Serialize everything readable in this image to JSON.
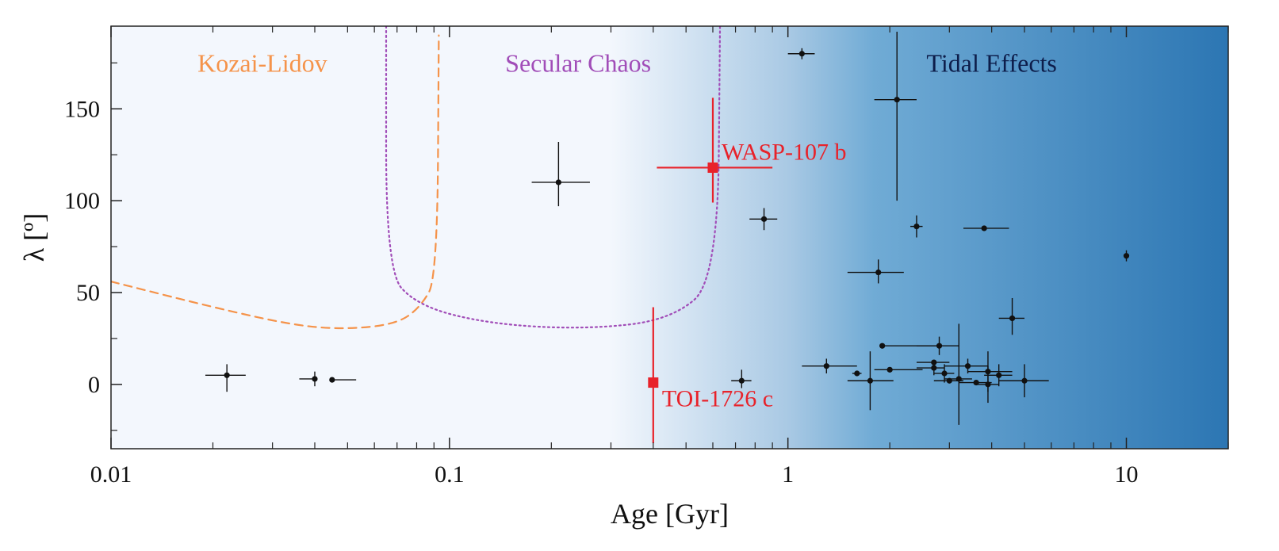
{
  "chart_data": {
    "type": "scatter",
    "x_axis": {
      "label": "Age [Gyr]",
      "scale": "log",
      "range": [
        0.01,
        20
      ],
      "tick_labels": [
        "0.01",
        "0.1",
        "1",
        "10"
      ],
      "tick_values": [
        0.01,
        0.1,
        1,
        10
      ]
    },
    "y_axis": {
      "label": "λ [º]",
      "range": [
        -35,
        195
      ],
      "tick_labels": [
        "0",
        "50",
        "100",
        "150"
      ],
      "tick_values": [
        0,
        50,
        100,
        150
      ]
    },
    "grid": false,
    "background_gradient": {
      "from_color": "#f3f7fd",
      "to_color": "#2c76b3",
      "start_age": 0.3,
      "end_age": 20
    },
    "regions": [
      {
        "label": "Kozai-Lidov",
        "color": "#f5934a",
        "line": "dashed",
        "label_x": 0.028,
        "label_y": 175,
        "boundary": [
          [
            0.01,
            56
          ],
          [
            0.02,
            42
          ],
          [
            0.035,
            32
          ],
          [
            0.05,
            30
          ],
          [
            0.07,
            33
          ],
          [
            0.082,
            42
          ],
          [
            0.092,
            58
          ],
          [
            0.093,
            190
          ]
        ]
      },
      {
        "label": "Secular Chaos",
        "color": "#a14db8",
        "line": "dotted",
        "label_x": 0.24,
        "label_y": 175,
        "boundary": [
          [
            0.065,
            195
          ],
          [
            0.065,
            62
          ],
          [
            0.08,
            43
          ],
          [
            0.13,
            33
          ],
          [
            0.25,
            30
          ],
          [
            0.45,
            35
          ],
          [
            0.62,
            57
          ],
          [
            0.63,
            195
          ]
        ]
      },
      {
        "label": "Tidal Effects",
        "color": "#0d1d4a",
        "line": "none",
        "label_x": 4.0,
        "label_y": 175
      }
    ],
    "series": [
      {
        "color": "#111111",
        "points": [
          {
            "x": 0.022,
            "y": 5,
            "xerr": [
              0.003,
              0.003
            ],
            "yerr": [
              9,
              6
            ]
          },
          {
            "x": 0.04,
            "y": 3,
            "xerr": [
              0.004,
              0.0
            ],
            "yerr": [
              4,
              4
            ]
          },
          {
            "x": 0.045,
            "y": 2.5,
            "xerr": [
              0.0,
              0.008
            ],
            "yerr": [
              1,
              1
            ]
          },
          {
            "x": 0.21,
            "y": 110,
            "xerr": [
              0.035,
              0.05
            ],
            "yerr": [
              13,
              22
            ]
          },
          {
            "x": 0.73,
            "y": 2,
            "xerr": [
              0.05,
              0.05
            ],
            "yerr": [
              4,
              6
            ]
          },
          {
            "x": 0.85,
            "y": 90,
            "xerr": [
              0.08,
              0.08
            ],
            "yerr": [
              6,
              6
            ]
          },
          {
            "x": 1.1,
            "y": 180,
            "xerr": [
              0.1,
              0.1
            ],
            "yerr": [
              3,
              3
            ]
          },
          {
            "x": 2.1,
            "y": 155,
            "xerr": [
              0.3,
              0.3
            ],
            "yerr": [
              55,
              37
            ]
          },
          {
            "x": 2.4,
            "y": 86,
            "xerr": [
              0.1,
              0.1
            ],
            "yerr": [
              6,
              6
            ]
          },
          {
            "x": 3.8,
            "y": 85,
            "xerr": [
              0.5,
              0.7
            ],
            "yerr": [
              1,
              1
            ]
          },
          {
            "x": 10.0,
            "y": 70,
            "xerr": [
              0.1,
              0.1
            ],
            "yerr": [
              3,
              3
            ]
          },
          {
            "x": 1.85,
            "y": 61,
            "xerr": [
              0.35,
              0.35
            ],
            "yerr": [
              6,
              7
            ]
          },
          {
            "x": 4.6,
            "y": 36,
            "xerr": [
              0.4,
              0.4
            ],
            "yerr": [
              9,
              11
            ]
          },
          {
            "x": 1.3,
            "y": 10,
            "xerr": [
              0.2,
              0.3
            ],
            "yerr": [
              4,
              4
            ]
          },
          {
            "x": 1.6,
            "y": 6,
            "xerr": [
              0.05,
              0.05
            ],
            "yerr": [
              1,
              1
            ]
          },
          {
            "x": 1.75,
            "y": 2,
            "xerr": [
              0.25,
              0.3
            ],
            "yerr": [
              16,
              16
            ]
          },
          {
            "x": 1.9,
            "y": 21,
            "xerr": [
              0.0,
              0.9
            ],
            "yerr": [
              1,
              1
            ]
          },
          {
            "x": 2.0,
            "y": 8,
            "xerr": [
              0.2,
              0.5
            ],
            "yerr": [
              1,
              1
            ]
          },
          {
            "x": 2.7,
            "y": 9,
            "xerr": [
              0.3,
              0.2
            ],
            "yerr": [
              4,
              4
            ]
          },
          {
            "x": 2.7,
            "y": 12,
            "xerr": [
              0.3,
              0.3
            ],
            "yerr": [
              1,
              1
            ]
          },
          {
            "x": 2.8,
            "y": 21,
            "xerr": [
              0.4,
              0.4
            ],
            "yerr": [
              5,
              5
            ]
          },
          {
            "x": 2.9,
            "y": 6,
            "xerr": [
              0.2,
              0.2
            ],
            "yerr": [
              5,
              5
            ]
          },
          {
            "x": 3.0,
            "y": 2,
            "xerr": [
              0.3,
              0.3
            ],
            "yerr": [
              1,
              1
            ]
          },
          {
            "x": 3.2,
            "y": 3,
            "xerr": [
              0.3,
              0.3
            ],
            "yerr": [
              25,
              30
            ]
          },
          {
            "x": 3.4,
            "y": 10,
            "xerr": [
              0.5,
              0.5
            ],
            "yerr": [
              4,
              4
            ]
          },
          {
            "x": 3.6,
            "y": 1,
            "xerr": [
              0.4,
              0.4
            ],
            "yerr": [
              1,
              1
            ]
          },
          {
            "x": 3.9,
            "y": 7,
            "xerr": [
              0.5,
              0.7
            ],
            "yerr": [
              11,
              11
            ]
          },
          {
            "x": 3.9,
            "y": 0,
            "xerr": [
              0.3,
              0.3
            ],
            "yerr": [
              10,
              10
            ]
          },
          {
            "x": 4.2,
            "y": 5,
            "xerr": [
              0.4,
              0.4
            ],
            "yerr": [
              6,
              6
            ]
          },
          {
            "x": 5.0,
            "y": 2,
            "xerr": [
              0.8,
              0.9
            ],
            "yerr": [
              9,
              9
            ]
          }
        ]
      },
      {
        "color": "#e8222a",
        "highlight": true,
        "points": [
          {
            "x": 0.6,
            "y": 118,
            "xerr": [
              0.19,
              0.3
            ],
            "yerr": [
              19,
              38
            ],
            "label": "WASP-107 b"
          },
          {
            "x": 0.4,
            "y": 1,
            "xerr": [
              0.01,
              0.01
            ],
            "yerr": [
              33,
              41
            ],
            "label": "TOI-1726 c"
          }
        ]
      }
    ]
  }
}
